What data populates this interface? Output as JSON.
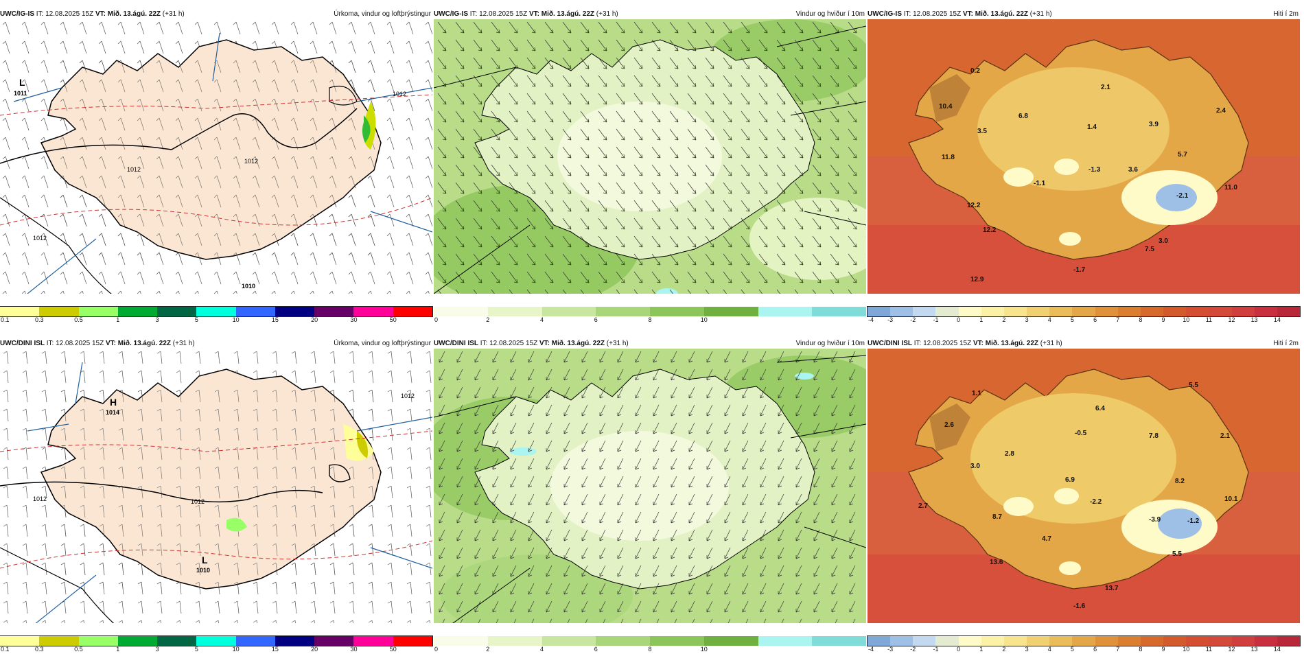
{
  "rows": [
    {
      "panels": [
        {
          "model": "UWC/IG-IS",
          "it_label": "IT:",
          "it": "12.08.2025 15Z",
          "vt_label": "VT:",
          "vt": "Mið. 13.ágú. 22Z",
          "lead": "(+31 h)",
          "title": "Úrkoma, vindur og loftþrýstingur"
        },
        {
          "model": "UWC/IG-IS",
          "it_label": "IT:",
          "it": "12.08.2025 15Z",
          "vt_label": "VT:",
          "vt": "Mið. 13.ágú. 22Z",
          "lead": "(+31 h)",
          "title": "Vindur og hviður í 10m"
        },
        {
          "model": "UWC/IG-IS",
          "it_label": "IT:",
          "it": "12.08.2025 15Z",
          "vt_label": "VT:",
          "vt": "Mið. 13.ágú. 22Z",
          "lead": "(+31 h)",
          "title": "Hiti í 2m"
        }
      ],
      "pressure_labels": {
        "L": "L",
        "L_val": "1011",
        "isobar_a": "1012",
        "isobar_b": "1012",
        "isobar_c": "1012",
        "isobar_d": "1010",
        "isobar_e": "1012"
      },
      "temps": [
        "0.2",
        "10.4",
        "3.5",
        "6.8",
        "2.1",
        "1.4",
        "3.9",
        "2.4",
        "11.8",
        "-1.1",
        "-1.3",
        "3.6",
        "5.7",
        "12.2",
        "-2.1",
        "11.0",
        "12.2",
        "7.5",
        "3.0",
        "-1.7",
        "12.9"
      ]
    },
    {
      "panels": [
        {
          "model": "UWC/DINI ISL",
          "it_label": "IT:",
          "it": "12.08.2025 15Z",
          "vt_label": "VT:",
          "vt": "Mið. 13.ágú. 22Z",
          "lead": "(+31 h)",
          "title": "Úrkoma, vindur og loftþrýstingur"
        },
        {
          "model": "UWC/DINI ISL",
          "it_label": "IT:",
          "it": "12.08.2025 15Z",
          "vt_label": "VT:",
          "vt": "Mið. 13.ágú. 22Z",
          "lead": "(+31 h)",
          "title": "Vindur og hviður í 10m"
        },
        {
          "model": "UWC/DINI ISL",
          "it_label": "IT:",
          "it": "12.08.2025 15Z",
          "vt_label": "VT:",
          "vt": "Mið. 13.ágú. 22Z",
          "lead": "(+31 h)",
          "title": "Hiti í 2m"
        }
      ],
      "pressure_labels": {
        "H": "H",
        "H_val": "1014",
        "L": "L",
        "L_val": "1010",
        "isobar_a": "1012",
        "isobar_b": "1012",
        "isobar_c": "1012"
      },
      "temps": [
        "1.1",
        "5.5",
        "2.6",
        "6.4",
        "-0.5",
        "7.8",
        "2.1",
        "2.8",
        "3.0",
        "6.9",
        "8.2",
        "10.1",
        "2.7",
        "-2.2",
        "8.7",
        "-3.9",
        "-1.2",
        "4.7",
        "5.5",
        "13.6",
        "13.7",
        "-1.6"
      ]
    }
  ],
  "legends": {
    "precip": {
      "ticks": [
        "0.1",
        "0.3",
        "0.5",
        "1",
        "3",
        "5",
        "10",
        "15",
        "20",
        "30",
        "50"
      ],
      "colors": [
        "#ffff99",
        "#cccc00",
        "#99ff66",
        "#00aa33",
        "#006644",
        "#00ffdd",
        "#3366ff",
        "#000080",
        "#660066",
        "#ff0099",
        "#ff0000"
      ]
    },
    "wind": {
      "ticks": [
        "0",
        "2",
        "4",
        "6",
        "8",
        "10"
      ],
      "colors": [
        "#f8fce8",
        "#e8f5c8",
        "#c9e6a0",
        "#a9d67a",
        "#8cc55a",
        "#70b040",
        "#aaf5f0",
        "#80dcd8"
      ]
    },
    "temp": {
      "ticks": [
        "-4",
        "-3",
        "-2",
        "-1",
        "0",
        "1",
        "2",
        "3",
        "4",
        "5",
        "6",
        "7",
        "8",
        "9",
        "10",
        "11",
        "12",
        "13",
        "14"
      ],
      "colors": [
        "#7fa8d8",
        "#9fc0e6",
        "#c2d9f0",
        "#e3ecd0",
        "#fffbc8",
        "#fbf2a8",
        "#f7e48c",
        "#f0d070",
        "#ebbd5a",
        "#e4a748",
        "#df923a",
        "#da7f30",
        "#d66a2a",
        "#d35a2a",
        "#d44e32",
        "#d44a3a",
        "#d03e3e",
        "#c83040",
        "#b82838"
      ]
    },
    "accent": {
      "land_precip": "#fbe6d4",
      "sea_precip": "#ffffff",
      "sea_temp": "#d9603e",
      "isobar": "#000000",
      "isotherm": "#d03030",
      "wind_bg": "#b8dc88"
    }
  }
}
